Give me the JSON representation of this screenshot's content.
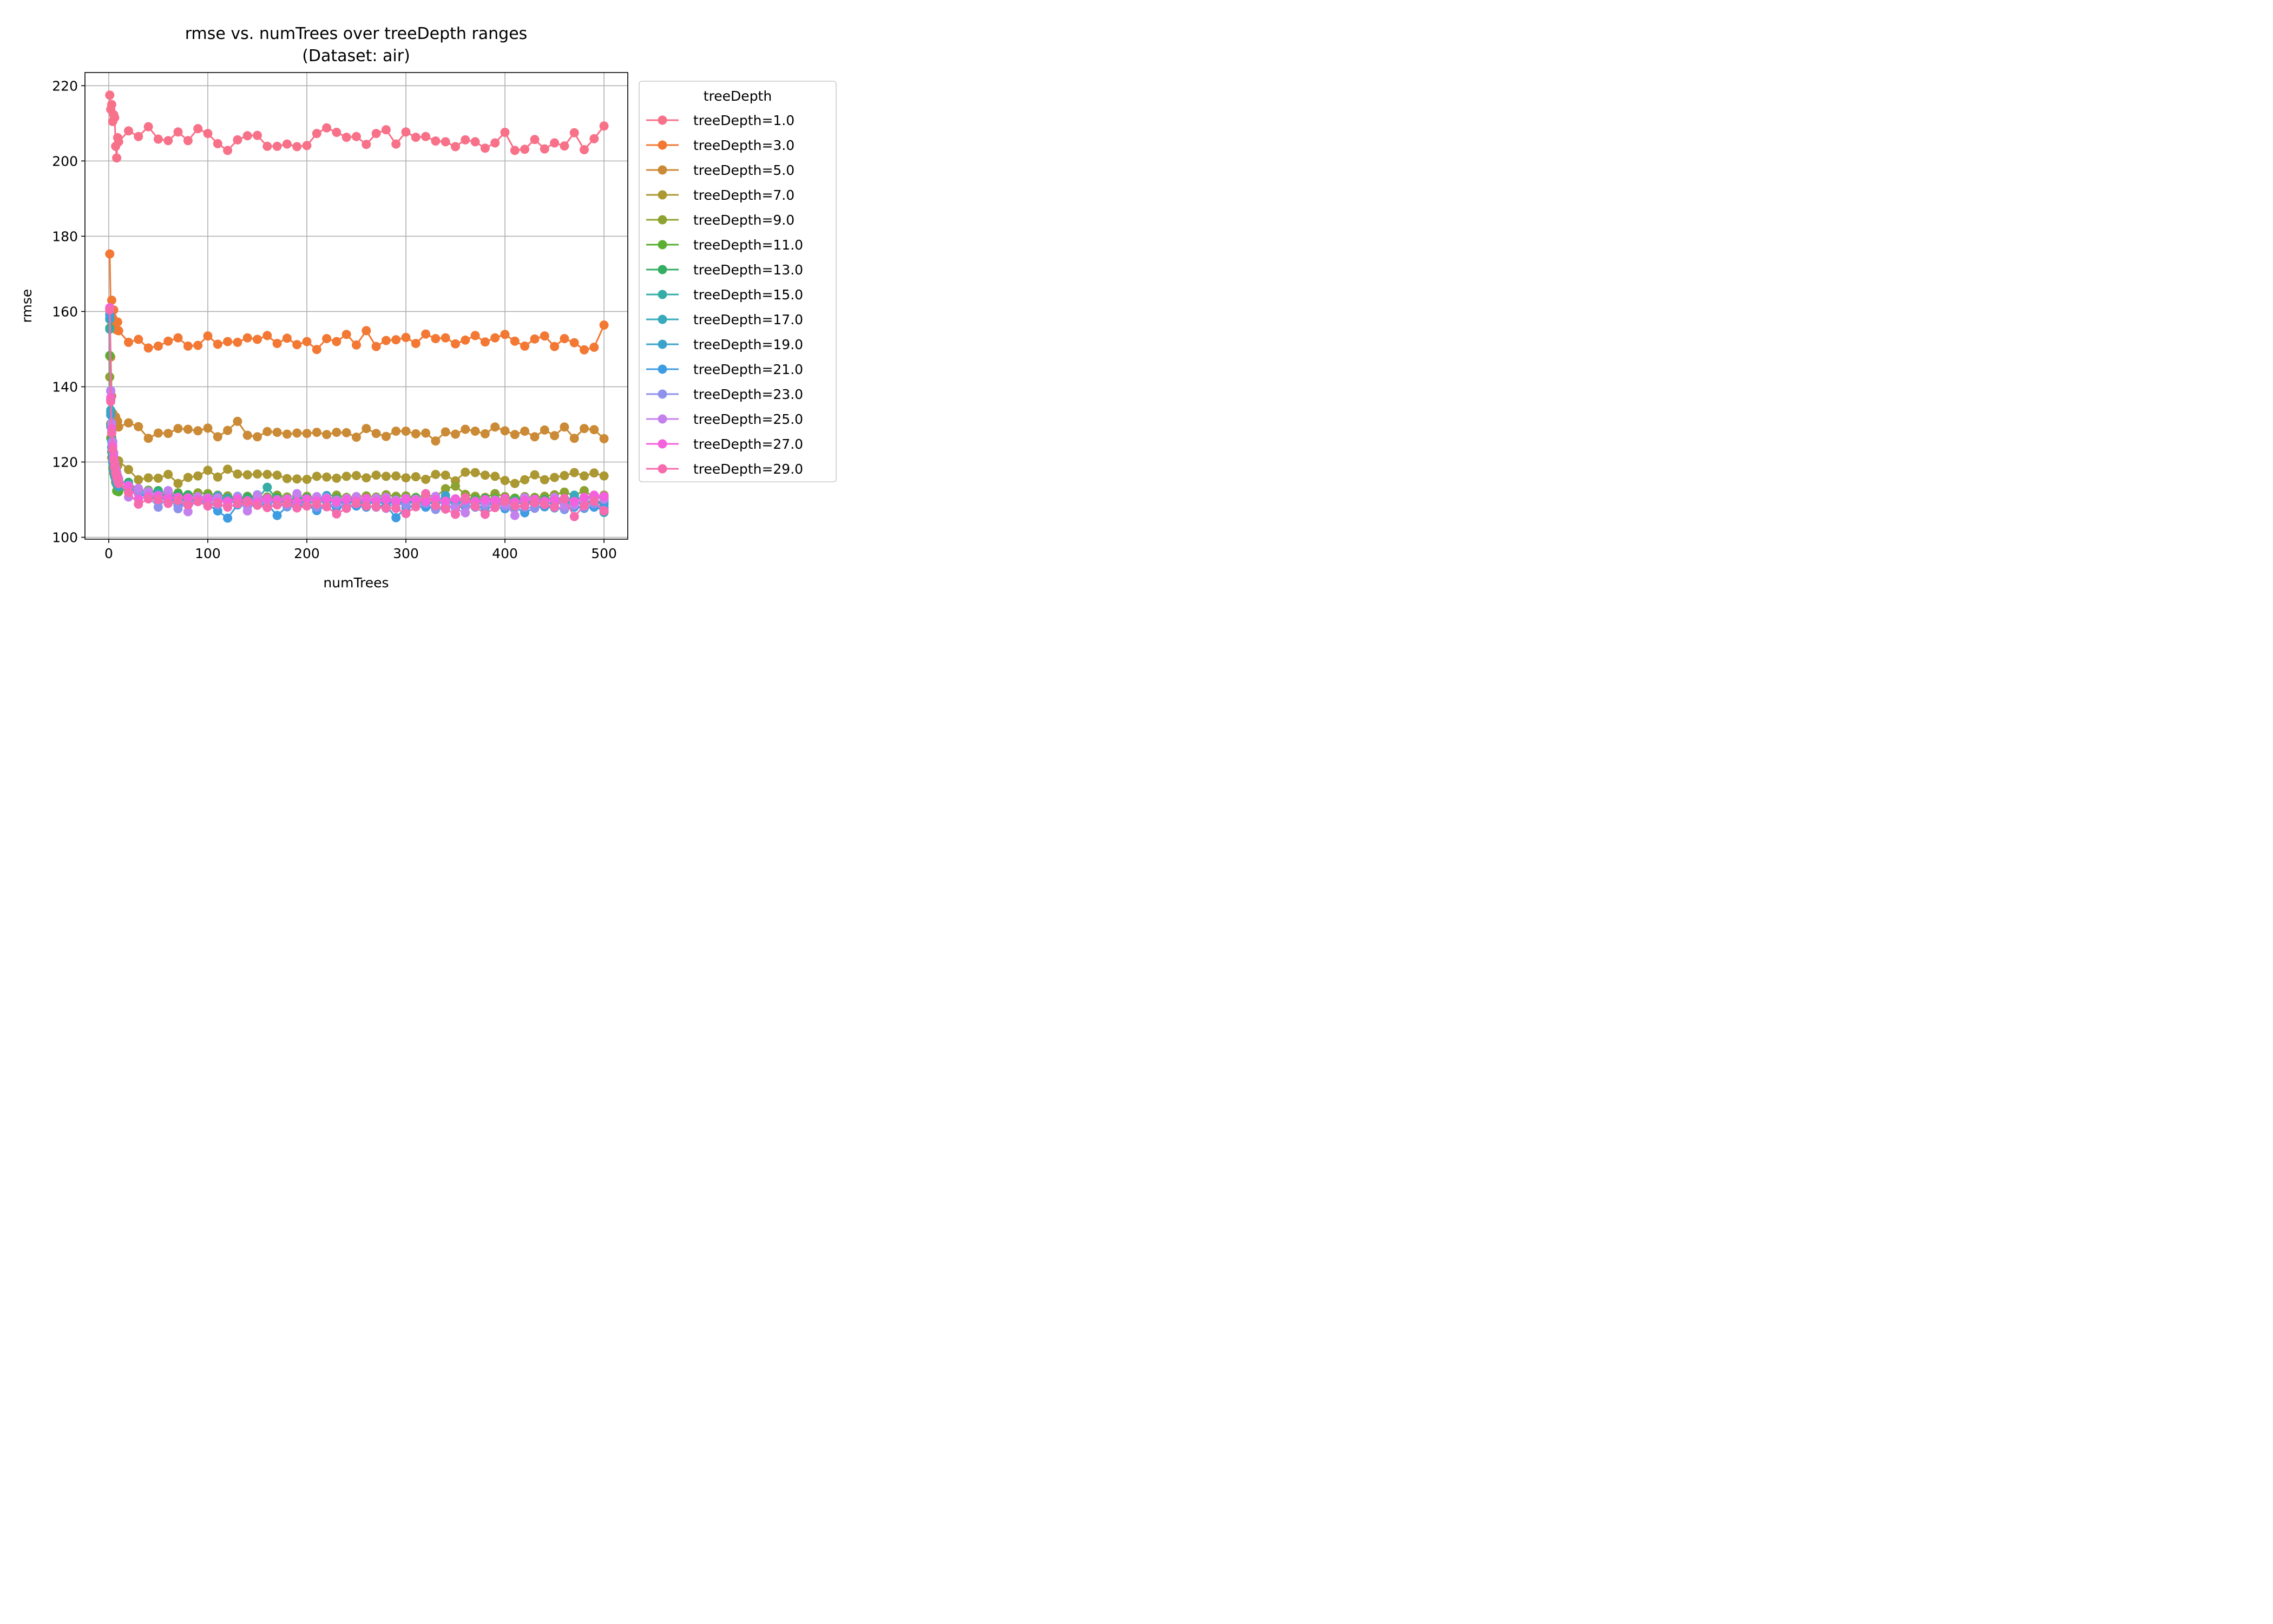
{
  "chart_data": {
    "type": "line",
    "title": "rmse vs. numTrees over treeDepth ranges",
    "subtitle": "(Dataset: air)",
    "xlabel": "numTrees",
    "ylabel": "rmse",
    "xlim": [
      -24,
      524
    ],
    "ylim": [
      99.5,
      223.5
    ],
    "xticks": [
      0,
      100,
      200,
      300,
      400,
      500
    ],
    "yticks": [
      100,
      120,
      140,
      160,
      180,
      200,
      220
    ],
    "xtick_labels": [
      "0",
      "100",
      "200",
      "300",
      "400",
      "500"
    ],
    "ytick_labels": [
      "100",
      "120",
      "140",
      "160",
      "180",
      "200",
      "220"
    ],
    "grid": true,
    "legend": {
      "title": "treeDepth",
      "placement": "outside-right"
    },
    "x": [
      1,
      2,
      3,
      4,
      5,
      6,
      7,
      8,
      9,
      10,
      20,
      30,
      40,
      50,
      60,
      70,
      80,
      90,
      100,
      110,
      120,
      130,
      140,
      150,
      160,
      170,
      180,
      190,
      200,
      210,
      220,
      230,
      240,
      250,
      260,
      270,
      280,
      290,
      300,
      310,
      320,
      330,
      340,
      350,
      360,
      370,
      380,
      390,
      400,
      410,
      420,
      430,
      440,
      450,
      460,
      470,
      480,
      490,
      500
    ],
    "series": [
      {
        "name": "treeDepth=1.0",
        "color": "#f77189",
        "values": [
          217.5,
          213.7,
          215.0,
          210.5,
          212.3,
          211.5,
          203.9,
          200.8,
          206.2,
          205.1,
          208.0,
          206.5,
          209.1,
          205.8,
          205.4,
          207.7,
          205.4,
          208.6,
          207.3,
          204.6,
          202.8,
          205.6,
          206.7,
          206.8,
          203.9,
          203.9,
          204.5,
          203.8,
          204.1,
          207.3,
          208.8,
          207.6,
          206.3,
          206.5,
          204.4,
          207.3,
          208.3,
          204.5,
          207.7,
          206.3,
          206.5,
          205.3,
          205.1,
          203.8,
          205.6,
          205.1,
          203.4,
          204.8,
          207.6,
          202.8,
          203.1,
          205.7,
          203.2,
          204.8,
          204.0,
          207.5,
          203.0,
          205.9,
          209.3
        ]
      },
      {
        "name": "treeDepth=3.0",
        "color": "#f27834",
        "values": [
          175.3,
          160.6,
          163.0,
          158.3,
          160.4,
          156.7,
          157.0,
          155.1,
          157.2,
          154.9,
          151.8,
          152.6,
          150.3,
          150.8,
          152.1,
          153.0,
          150.8,
          151.0,
          153.5,
          151.3,
          152.0,
          151.8,
          153.0,
          152.6,
          153.6,
          151.5,
          152.9,
          151.2,
          152.0,
          149.9,
          152.8,
          152.0,
          153.9,
          151.1,
          154.9,
          150.7,
          152.3,
          152.5,
          153.1,
          151.5,
          154.0,
          152.8,
          153.0,
          151.4,
          152.4,
          153.6,
          151.9,
          153.0,
          153.9,
          152.1,
          150.8,
          152.7,
          153.5,
          150.7,
          152.8,
          151.7,
          149.8,
          150.5,
          156.4
        ]
      },
      {
        "name": "treeDepth=5.0",
        "color": "#cb8a35",
        "values": [
          160.2,
          147.9,
          137.5,
          133.0,
          131.5,
          130.4,
          132.0,
          129.6,
          130.8,
          129.3,
          130.4,
          129.4,
          126.3,
          127.7,
          127.6,
          128.9,
          128.7,
          128.3,
          129.0,
          126.7,
          128.4,
          130.8,
          127.1,
          126.7,
          128.1,
          127.9,
          127.4,
          127.7,
          127.6,
          127.9,
          127.3,
          127.9,
          127.8,
          126.6,
          128.9,
          127.6,
          126.8,
          128.2,
          128.2,
          127.5,
          127.7,
          125.6,
          128.0,
          127.4,
          128.7,
          128.2,
          127.5,
          129.3,
          128.3,
          127.3,
          128.2,
          126.7,
          128.5,
          127.0,
          129.3,
          126.3,
          128.9,
          128.6,
          126.2
        ]
      },
      {
        "name": "treeDepth=7.0",
        "color": "#ab9832",
        "values": [
          148.2,
          130.2,
          126.6,
          123.2,
          121.5,
          120.1,
          119.2,
          118.6,
          119.0,
          120.3,
          118.0,
          115.3,
          115.8,
          115.7,
          116.7,
          114.3,
          115.9,
          116.3,
          117.8,
          116.0,
          118.1,
          116.8,
          116.6,
          116.8,
          116.7,
          116.5,
          115.6,
          115.5,
          115.4,
          116.2,
          116.0,
          115.7,
          116.2,
          116.4,
          115.8,
          116.5,
          116.2,
          116.3,
          115.8,
          116.1,
          115.4,
          116.7,
          116.5,
          115.0,
          117.3,
          117.2,
          116.5,
          116.2,
          115.1,
          114.3,
          115.3,
          116.6,
          115.3,
          115.9,
          116.4,
          117.2,
          116.3,
          117.1,
          116.3
        ]
      },
      {
        "name": "treeDepth=9.0",
        "color": "#8ea232",
        "values": [
          142.6,
          126.4,
          121.2,
          118.4,
          117.0,
          116.2,
          114.8,
          114.0,
          113.5,
          113.2,
          113.9,
          112.7,
          112.2,
          112.3,
          111.7,
          111.8,
          111.3,
          111.8,
          111.6,
          111.2,
          111.0,
          110.5,
          110.9,
          111.0,
          110.7,
          111.2,
          110.7,
          111.0,
          110.9,
          110.5,
          111.0,
          111.2,
          110.6,
          110.8,
          111.0,
          110.7,
          111.3,
          110.9,
          111.0,
          110.6,
          111.2,
          110.8,
          112.9,
          113.6,
          111.4,
          110.9,
          110.6,
          111.6,
          110.8,
          110.4,
          110.8,
          110.6,
          110.9,
          111.3,
          112.0,
          111.1,
          112.4,
          110.6,
          111.2
        ]
      },
      {
        "name": "treeDepth=11.0",
        "color": "#5aae32",
        "values": [
          148.3,
          130.1,
          124.0,
          120.6,
          117.7,
          116.1,
          114.6,
          112.3,
          112.3,
          112.1,
          112.9,
          112.1,
          112.5,
          111.2,
          111.0,
          111.6,
          110.3,
          110.5,
          111.0,
          110.7,
          110.0,
          110.4,
          110.3,
          110.6,
          110.4,
          110.6,
          110.2,
          110.1,
          110.1,
          110.4,
          110.6,
          110.3,
          110.3,
          110.6,
          110.1,
          110.3,
          110.3,
          110.1,
          110.3,
          110.5,
          110.2,
          110.2,
          110.3,
          110.0,
          110.4,
          110.2,
          110.1,
          110.3,
          110.2,
          110.4,
          110.0,
          110.3,
          110.1,
          110.5,
          110.3,
          110.1,
          110.6,
          110.3,
          110.6
        ]
      },
      {
        "name": "treeDepth=13.0",
        "color": "#34ae63",
        "values": [
          155.6,
          133.2,
          126.1,
          121.9,
          118.9,
          117.0,
          116.4,
          114.8,
          114.2,
          113.8,
          114.6,
          112.5,
          112.1,
          112.4,
          110.5,
          111.4,
          111.3,
          110.7,
          110.5,
          111.0,
          110.2,
          110.4,
          110.7,
          110.6,
          110.0,
          110.3,
          109.8,
          110.3,
          110.5,
          109.9,
          110.3,
          110.2,
          110.0,
          110.4,
          110.0,
          110.1,
          110.3,
          109.7,
          110.2,
          110.3,
          109.9,
          110.0,
          109.7,
          110.2,
          109.9,
          109.8,
          110.3,
          109.9,
          110.1,
          109.8,
          110.2,
          109.9,
          110.0,
          110.3,
          109.8,
          110.4,
          110.0,
          108.3,
          110.3
        ]
      },
      {
        "name": "treeDepth=15.0",
        "color": "#36ada4",
        "values": [
          155.3,
          129.4,
          122.7,
          119.9,
          117.8,
          116.6,
          115.6,
          114.3,
          113.8,
          113.4,
          112.2,
          112.7,
          110.6,
          111.7,
          110.2,
          110.6,
          109.8,
          110.2,
          110.0,
          110.8,
          110.4,
          109.7,
          109.5,
          110.2,
          113.3,
          109.9,
          109.5,
          109.6,
          109.8,
          110.1,
          110.0,
          109.4,
          109.6,
          109.8,
          109.5,
          109.9,
          109.5,
          109.7,
          109.8,
          109.4,
          109.6,
          109.9,
          109.5,
          109.8,
          109.7,
          109.6,
          109.4,
          109.8,
          109.4,
          109.6,
          109.7,
          109.3,
          109.6,
          109.8,
          109.5,
          109.3,
          109.7,
          109.4,
          109.6
        ]
      },
      {
        "name": "treeDepth=17.0",
        "color": "#38aabc",
        "values": [
          157.9,
          133.8,
          125.4,
          121.1,
          118.7,
          117.0,
          115.8,
          114.8,
          114.2,
          113.6,
          112.5,
          111.9,
          110.9,
          110.4,
          110.5,
          110.3,
          109.8,
          110.3,
          109.4,
          110.1,
          109.6,
          109.3,
          109.8,
          109.6,
          109.2,
          109.8,
          109.5,
          109.4,
          109.1,
          109.6,
          109.3,
          109.5,
          109.3,
          109.2,
          109.5,
          109.3,
          109.1,
          109.4,
          109.2,
          109.4,
          109.1,
          109.3,
          109.0,
          109.3,
          109.1,
          109.4,
          109.2,
          109.0,
          109.3,
          109.1,
          109.2,
          109.4,
          109.0,
          109.1,
          109.3,
          111.2,
          109.4,
          108.7,
          106.6
        ]
      },
      {
        "name": "treeDepth=19.0",
        "color": "#3ba3cb",
        "values": [
          158.2,
          132.5,
          123.9,
          120.4,
          118.2,
          116.6,
          115.4,
          114.6,
          114.0,
          113.5,
          112.3,
          111.6,
          110.5,
          111.4,
          110.0,
          109.9,
          109.6,
          110.2,
          109.7,
          111.0,
          109.5,
          109.2,
          109.6,
          109.4,
          109.1,
          109.5,
          109.2,
          109.1,
          109.3,
          109.3,
          111.1,
          109.0,
          109.3,
          109.2,
          109.0,
          109.3,
          109.1,
          109.2,
          109.0,
          109.4,
          108.9,
          109.2,
          111.1,
          109.0,
          109.3,
          109.0,
          108.9,
          109.1,
          108.8,
          109.0,
          109.2,
          108.9,
          109.0,
          109.2,
          108.8,
          109.0,
          108.9,
          109.1,
          108.9
        ]
      },
      {
        "name": "treeDepth=21.0",
        "color": "#3e9ce2",
        "values": [
          159.2,
          136.6,
          128.0,
          123.3,
          120.3,
          118.3,
          116.9,
          115.9,
          115.2,
          114.6,
          113.9,
          111.6,
          110.6,
          109.9,
          110.5,
          108.4,
          108.9,
          109.5,
          108.7,
          107.0,
          105.1,
          108.6,
          108.3,
          108.6,
          108.8,
          105.8,
          108.1,
          108.3,
          108.5,
          107.1,
          108.4,
          107.9,
          108.1,
          108.3,
          108.0,
          108.2,
          108.5,
          105.2,
          107.9,
          108.2,
          108.0,
          107.7,
          108.2,
          107.9,
          108.1,
          108.0,
          107.8,
          108.1,
          107.6,
          108.0,
          106.5,
          107.9,
          108.1,
          107.8,
          107.4,
          108.0,
          107.7,
          108.0,
          107.9
        ]
      },
      {
        "name": "treeDepth=23.0",
        "color": "#8e92ec",
        "values": [
          160.6,
          139.0,
          130.4,
          125.5,
          122.4,
          120.1,
          118.5,
          117.3,
          116.3,
          115.6,
          113.8,
          112.1,
          110.8,
          108.0,
          110.7,
          107.6,
          109.2,
          109.7,
          109.5,
          108.6,
          108.2,
          110.9,
          108.8,
          111.3,
          108.0,
          108.7,
          108.3,
          109.3,
          108.5,
          108.0,
          108.5,
          108.8,
          108.2,
          108.9,
          108.4,
          108.0,
          107.7,
          109.1,
          108.5,
          108.3,
          109.0,
          107.4,
          107.6,
          108.3,
          108.7,
          108.1,
          108.4,
          108.8,
          108.2,
          108.5,
          108.0,
          107.7,
          108.8,
          108.1,
          107.5,
          108.4,
          108.0,
          108.9,
          107.2
        ]
      },
      {
        "name": "treeDepth=25.0",
        "color": "#c481ed",
        "values": [
          160.8,
          138.8,
          130.1,
          125.2,
          122.3,
          120.0,
          118.3,
          117.1,
          116.1,
          115.4,
          110.7,
          113.0,
          112.2,
          111.1,
          112.4,
          110.6,
          106.8,
          110.8,
          110.5,
          110.5,
          109.0,
          110.5,
          107.0,
          111.0,
          109.7,
          110.0,
          110.2,
          111.6,
          110.1,
          110.8,
          110.5,
          109.9,
          110.3,
          110.8,
          109.8,
          110.4,
          110.6,
          109.9,
          110.3,
          110.1,
          110.5,
          110.9,
          109.0,
          107.6,
          106.5,
          109.6,
          109.2,
          109.9,
          108.9,
          105.8,
          110.5,
          109.9,
          109.4,
          110.6,
          108.3,
          108.8,
          109.8,
          110.7,
          110.1
        ]
      },
      {
        "name": "treeDepth=27.0",
        "color": "#f561dd",
        "values": [
          161.0,
          137.1,
          128.9,
          124.2,
          121.3,
          119.3,
          117.7,
          116.5,
          115.6,
          114.9,
          113.6,
          110.2,
          110.9,
          111.0,
          110.4,
          110.6,
          110.5,
          110.0,
          110.2,
          109.4,
          109.6,
          110.1,
          109.7,
          109.4,
          110.3,
          109.8,
          110.0,
          109.5,
          110.2,
          109.7,
          110.1,
          109.4,
          110.0,
          109.7,
          110.3,
          109.6,
          110.0,
          109.4,
          110.1,
          109.8,
          109.5,
          110.0,
          109.6,
          110.2,
          109.9,
          109.5,
          110.0,
          109.7,
          110.3,
          109.4,
          109.8,
          110.1,
          109.6,
          109.9,
          110.3,
          109.5,
          110.6,
          111.2,
          110.9
        ]
      },
      {
        "name": "treeDepth=29.0",
        "color": "#f66bad",
        "values": [
          160.4,
          136.1,
          127.7,
          123.2,
          120.4,
          118.5,
          117.0,
          115.9,
          115.0,
          114.3,
          111.9,
          108.8,
          110.2,
          110.0,
          109.0,
          109.8,
          108.6,
          109.5,
          108.3,
          109.0,
          108.0,
          108.9,
          109.3,
          108.5,
          107.9,
          108.6,
          109.0,
          107.8,
          108.3,
          108.8,
          108.1,
          106.2,
          107.7,
          109.0,
          108.3,
          108.1,
          107.8,
          107.7,
          106.3,
          108.1,
          111.6,
          108.4,
          107.5,
          106.1,
          110.5,
          108.2,
          106.1,
          107.9,
          109.6,
          108.3,
          108.4,
          109.2,
          108.7,
          108.0,
          110.2,
          105.5,
          108.4,
          109.6,
          107.0
        ]
      }
    ]
  }
}
